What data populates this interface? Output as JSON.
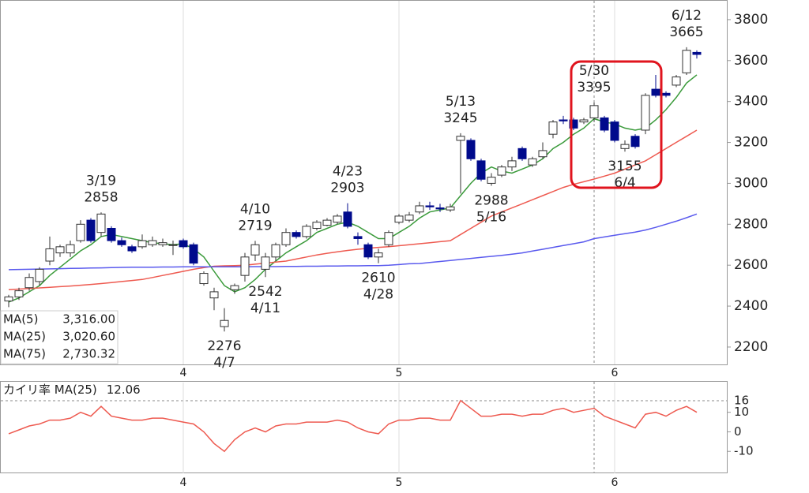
{
  "chart_data": [
    {
      "type": "candlestick",
      "categories": [
        null,
        null,
        null,
        null,
        null,
        null,
        null,
        null,
        null,
        null,
        null,
        null,
        null,
        null,
        null,
        null,
        null,
        "4",
        null,
        null,
        null,
        null,
        null,
        null,
        null,
        null,
        null,
        null,
        null,
        null,
        null,
        null,
        null,
        null,
        null,
        null,
        null,
        null,
        "5",
        null,
        null,
        null,
        null,
        null,
        null,
        null,
        null,
        null,
        null,
        null,
        null,
        null,
        null,
        null,
        null,
        null,
        null,
        null,
        null,
        "6",
        null,
        null,
        null,
        null,
        null,
        null,
        null,
        null
      ],
      "open": [
        2425,
        2445,
        2490,
        2520,
        2620,
        2660,
        2660,
        2720,
        2820,
        2760,
        2780,
        2720,
        2690,
        2690,
        2700,
        2700,
        2700,
        2720,
        2700,
        2510,
        2440,
        2300,
        2480,
        2550,
        2650,
        2580,
        2640,
        2700,
        2760,
        2740,
        2780,
        2795,
        2810,
        2860,
        2740,
        2700,
        2640,
        2700,
        2810,
        2820,
        2860,
        2890,
        2880,
        2870,
        3210,
        3210,
        3110,
        3000,
        3040,
        3080,
        3170,
        3090,
        3130,
        3240,
        3310,
        3310,
        3300,
        3320,
        3320,
        3300,
        3170,
        3230,
        3260,
        3460,
        3440,
        3480,
        3540,
        3640
      ],
      "high": [
        2455,
        2490,
        2560,
        2590,
        2740,
        2700,
        2720,
        2820,
        2830,
        2858,
        2790,
        2735,
        2700,
        2750,
        2740,
        2730,
        2720,
        2730,
        2710,
        2570,
        2490,
        2390,
        2510,
        2660,
        2719,
        2660,
        2710,
        2780,
        2770,
        2800,
        2820,
        2830,
        2850,
        2903,
        2760,
        2710,
        2680,
        2770,
        2850,
        2860,
        2910,
        2910,
        2900,
        2900,
        3245,
        3220,
        3120,
        3050,
        3090,
        3130,
        3180,
        3130,
        3200,
        3310,
        3330,
        3320,
        3320,
        3395,
        3330,
        3310,
        3210,
        3240,
        3440,
        3530,
        3450,
        3530,
        3665,
        3650
      ],
      "low": [
        2395,
        2430,
        2475,
        2500,
        2600,
        2640,
        2640,
        2710,
        2710,
        2740,
        2710,
        2690,
        2660,
        2680,
        2690,
        2690,
        2650,
        2680,
        2600,
        2500,
        2380,
        2276,
        2460,
        2520,
        2620,
        2542,
        2620,
        2690,
        2730,
        2730,
        2770,
        2790,
        2800,
        2780,
        2700,
        2630,
        2610,
        2690,
        2800,
        2810,
        2850,
        2870,
        2860,
        2860,
        2950,
        3110,
        3010,
        2988,
        3030,
        3060,
        3110,
        3080,
        3120,
        3220,
        3290,
        3260,
        3290,
        3300,
        3250,
        3200,
        3155,
        3170,
        3240,
        3420,
        3420,
        3470,
        3530,
        3610
      ],
      "close": [
        2445,
        2475,
        2540,
        2580,
        2680,
        2690,
        2700,
        2800,
        2720,
        2850,
        2720,
        2700,
        2670,
        2720,
        2720,
        2710,
        2700,
        2690,
        2610,
        2560,
        2470,
        2330,
        2500,
        2640,
        2700,
        2640,
        2700,
        2760,
        2740,
        2790,
        2810,
        2820,
        2840,
        2790,
        2730,
        2640,
        2660,
        2760,
        2840,
        2845,
        2890,
        2885,
        2875,
        2885,
        3230,
        3120,
        3020,
        3030,
        3080,
        3110,
        3120,
        3120,
        3160,
        3300,
        3305,
        3270,
        3310,
        3380,
        3260,
        3210,
        3190,
        3180,
        3430,
        3430,
        3430,
        3520,
        3650,
        3630
      ],
      "up_color": "#ffffff",
      "down_color": "#000a8c",
      "ylim": [
        2115,
        3896
      ],
      "yticks": [
        2200,
        2400,
        2600,
        2800,
        3000,
        3200,
        3400,
        3600,
        3800
      ],
      "series": [
        {
          "name": "MA(5)",
          "color": "#3a9a3a",
          "current_value": {
            "value": 3316,
            "label": "3,316.00"
          },
          "values": [
            2420,
            2440,
            2470,
            2500,
            2550,
            2590,
            2630,
            2670,
            2700,
            2740,
            2750,
            2740,
            2730,
            2720,
            2710,
            2705,
            2700,
            2705,
            2680,
            2640,
            2570,
            2500,
            2470,
            2490,
            2530,
            2580,
            2620,
            2660,
            2690,
            2720,
            2760,
            2780,
            2800,
            2810,
            2790,
            2760,
            2730,
            2730,
            2760,
            2790,
            2830,
            2860,
            2870,
            2880,
            2940,
            3000,
            3050,
            3080,
            3060,
            3050,
            3070,
            3090,
            3120,
            3170,
            3200,
            3240,
            3270,
            3316,
            3300,
            3290,
            3270,
            3260,
            3270,
            3310,
            3360,
            3420,
            3490,
            3530
          ]
        },
        {
          "name": "MA(25)",
          "color": "#ee5a50",
          "current_value": {
            "value": 3020.6,
            "label": "3,020.60"
          },
          "values": [
            2480,
            2483,
            2486,
            2489,
            2492,
            2495,
            2498,
            2502,
            2506,
            2510,
            2515,
            2520,
            2525,
            2530,
            2540,
            2550,
            2560,
            2570,
            2580,
            2588,
            2595,
            2597,
            2598,
            2600,
            2605,
            2610,
            2615,
            2620,
            2630,
            2640,
            2650,
            2658,
            2665,
            2672,
            2678,
            2683,
            2687,
            2690,
            2695,
            2700,
            2705,
            2710,
            2715,
            2720,
            2750,
            2780,
            2810,
            2840,
            2860,
            2880,
            2900,
            2920,
            2940,
            2960,
            2980,
            2995,
            3008,
            3021,
            3035,
            3050,
            3070,
            3090,
            3110,
            3140,
            3170,
            3200,
            3230,
            3260
          ]
        },
        {
          "name": "MA(75)",
          "color": "#5a5aee",
          "current_value": {
            "value": 2730.32,
            "label": "2,730.32"
          },
          "values": [
            2578,
            2579,
            2580,
            2581,
            2582,
            2583,
            2584,
            2585,
            2586,
            2587,
            2588,
            2589,
            2590,
            2590,
            2590,
            2591,
            2591,
            2592,
            2592,
            2592,
            2592,
            2592,
            2592,
            2592,
            2593,
            2593,
            2593,
            2594,
            2594,
            2595,
            2595,
            2596,
            2596,
            2597,
            2597,
            2598,
            2598,
            2600,
            2603,
            2607,
            2608,
            2613,
            2618,
            2623,
            2628,
            2633,
            2638,
            2643,
            2648,
            2654,
            2660,
            2669,
            2678,
            2687,
            2696,
            2705,
            2714,
            2730,
            2738,
            2746,
            2754,
            2762,
            2772,
            2785,
            2800,
            2815,
            2832,
            2850
          ]
        }
      ],
      "annotations": [
        {
          "date": "3/19",
          "value": 2858
        },
        {
          "date": "4/7",
          "value": 2276
        },
        {
          "date": "4/10",
          "value": 2719
        },
        {
          "date": "4/11",
          "value": 2542
        },
        {
          "date": "4/23",
          "value": 2903
        },
        {
          "date": "4/28",
          "value": 2610
        },
        {
          "date": "5/13",
          "value": 3245
        },
        {
          "date": "5/16",
          "value": 2988
        },
        {
          "date": "5/30",
          "value": 3395
        },
        {
          "date": "6/4",
          "value": 3155
        },
        {
          "date": "6/12",
          "value": 3665
        }
      ]
    },
    {
      "type": "line",
      "categories": [
        null,
        null,
        null,
        null,
        null,
        null,
        null,
        null,
        null,
        null,
        null,
        null,
        null,
        null,
        null,
        null,
        null,
        "4",
        null,
        null,
        null,
        null,
        null,
        null,
        null,
        null,
        null,
        null,
        null,
        null,
        null,
        null,
        null,
        null,
        null,
        null,
        null,
        null,
        "5",
        null,
        null,
        null,
        null,
        null,
        null,
        null,
        null,
        null,
        null,
        null,
        null,
        null,
        null,
        null,
        null,
        null,
        null,
        null,
        null,
        "6",
        null,
        null,
        null,
        null,
        null,
        null,
        null,
        null
      ],
      "series": [
        {
          "name": "カイリ率 MA(25)",
          "color": "#ee5a50",
          "current_value": 12.06,
          "values": [
            -1,
            1,
            3,
            4,
            6,
            6,
            7,
            10,
            8,
            13,
            8,
            7,
            6,
            6,
            7,
            7,
            6,
            5,
            4,
            0,
            -6,
            -10,
            -4,
            0,
            2,
            0,
            3,
            4,
            4,
            5,
            5,
            5,
            6,
            5,
            2,
            0,
            -1,
            4,
            6,
            6,
            7,
            7,
            6,
            6,
            16,
            12,
            8,
            8,
            9,
            9,
            8,
            9,
            9,
            11,
            12,
            10,
            11,
            12,
            8,
            6,
            4,
            2,
            9,
            10,
            8,
            11,
            13,
            10
          ]
        }
      ],
      "ylim": [
        -21.2,
        25.6
      ],
      "yticks": [
        -10,
        0,
        10
      ],
      "marker": 16
    }
  ]
}
